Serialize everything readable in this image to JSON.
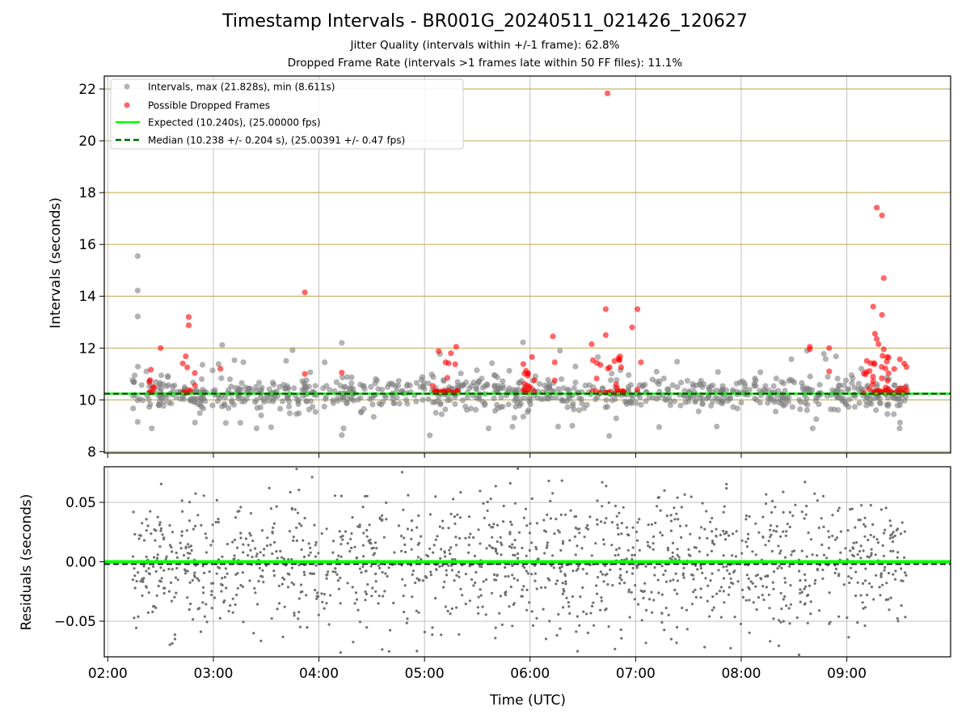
{
  "colors": {
    "intervals": "#808080",
    "dropped": "#ff0000",
    "expected": "#00ff00",
    "median": "#006400",
    "jitter_band": "#c8b26a",
    "grid": "#b0b0b0",
    "residual_points": "#707070"
  },
  "chart_data": [
    {
      "type": "scatter",
      "title": "Timestamp Intervals - BR001G_20240511_021426_120627",
      "subtitle_1": "Jitter Quality (intervals within +/-1 frame): 62.8%",
      "subtitle_2": "Dropped Frame Rate (intervals >1 frames late within 50 FF files): 11.1%",
      "ylabel": "Intervals (seconds)",
      "xlabel": "",
      "xlim": [
        "01:58",
        "09:59"
      ],
      "ylim": [
        7.95,
        22.5
      ],
      "yticks": [
        "8",
        "10",
        "12",
        "14",
        "16",
        "18",
        "20",
        "22"
      ],
      "jitter_band_lines": [
        8.0,
        10.0,
        12.0,
        14.0,
        16.0,
        18.0,
        20.0,
        22.0
      ],
      "grid": true,
      "legend_position": "upper-left",
      "legend": [
        "Intervals, max (21.828s), min (8.611s)",
        "Possible Dropped Frames",
        "Expected (10.240s), (25.00000 fps)",
        "Median (10.238 +/- 0.204 s), (25.00391 +/- 0.47 fps)"
      ],
      "expected_interval": 10.24,
      "median_interval": 10.238,
      "intervals_max": 21.828,
      "intervals_min": 8.611,
      "time_range": [
        "02:14",
        "09:34"
      ],
      "highlighted_intervals": [
        {
          "x": "02:17",
          "y": 15.55
        },
        {
          "x": "02:17",
          "y": 14.22
        },
        {
          "x": "02:17",
          "y": 13.22
        },
        {
          "x": "02:17",
          "y": 9.15
        },
        {
          "x": "03:05",
          "y": 12.12
        },
        {
          "x": "03:45",
          "y": 11.92
        },
        {
          "x": "04:13",
          "y": 12.2
        },
        {
          "x": "04:13",
          "y": 8.64
        },
        {
          "x": "05:03",
          "y": 8.63
        },
        {
          "x": "05:56",
          "y": 12.22
        },
        {
          "x": "06:45",
          "y": 8.61
        },
        {
          "x": "06:24",
          "y": 9.0
        },
        {
          "x": "08:00",
          "y": 9.9
        },
        {
          "x": "09:30",
          "y": 8.9
        }
      ],
      "dropped_frames": [
        {
          "x": "02:46",
          "y": 13.2
        },
        {
          "x": "02:46",
          "y": 12.88
        },
        {
          "x": "02:30",
          "y": 12.0
        },
        {
          "x": "03:52",
          "y": 14.15
        },
        {
          "x": "03:52",
          "y": 11.0
        },
        {
          "x": "04:13",
          "y": 11.05
        },
        {
          "x": "03:04",
          "y": 11.2
        },
        {
          "x": "05:08",
          "y": 11.88
        },
        {
          "x": "05:15",
          "y": 11.8
        },
        {
          "x": "05:18",
          "y": 12.05
        },
        {
          "x": "05:12",
          "y": 11.45
        },
        {
          "x": "05:13",
          "y": 10.85
        },
        {
          "x": "06:13",
          "y": 12.45
        },
        {
          "x": "06:14",
          "y": 11.45
        },
        {
          "x": "06:14",
          "y": 10.75
        },
        {
          "x": "06:35",
          "y": 12.15
        },
        {
          "x": "06:43",
          "y": 13.5
        },
        {
          "x": "06:43",
          "y": 12.5
        },
        {
          "x": "06:44",
          "y": 21.83
        },
        {
          "x": "06:48",
          "y": 11.5
        },
        {
          "x": "06:40",
          "y": 11.35
        },
        {
          "x": "06:58",
          "y": 12.8
        },
        {
          "x": "07:01",
          "y": 13.5
        },
        {
          "x": "07:03",
          "y": 11.45
        },
        {
          "x": "07:01",
          "y": 10.4
        },
        {
          "x": "08:39",
          "y": 12.05
        },
        {
          "x": "08:39",
          "y": 11.95
        },
        {
          "x": "08:50",
          "y": 12.0
        },
        {
          "x": "08:50",
          "y": 11.1
        },
        {
          "x": "09:15",
          "y": 13.6
        },
        {
          "x": "09:17",
          "y": 17.42
        },
        {
          "x": "09:20",
          "y": 17.12
        },
        {
          "x": "09:21",
          "y": 14.7
        },
        {
          "x": "09:20",
          "y": 13.28
        },
        {
          "x": "09:16",
          "y": 12.55
        },
        {
          "x": "09:17",
          "y": 12.35
        },
        {
          "x": "09:18",
          "y": 12.15
        },
        {
          "x": "09:21",
          "y": 11.95
        }
      ]
    },
    {
      "type": "scatter",
      "xlabel": "Time (UTC)",
      "ylabel": "Residuals (seconds)",
      "xlim": [
        "01:58",
        "09:59"
      ],
      "ylim": [
        -0.08,
        0.08
      ],
      "yticks": [
        "−0.05",
        "0.00",
        "0.05"
      ],
      "yticks_values": [
        -0.05,
        0.0,
        0.05
      ],
      "xticks": [
        "02:00",
        "03:00",
        "04:00",
        "05:00",
        "06:00",
        "07:00",
        "08:00",
        "09:00"
      ],
      "grid": true,
      "zero_line": 0.0,
      "median_residual": -0.002,
      "residual_spread_approx": 0.03
    }
  ]
}
